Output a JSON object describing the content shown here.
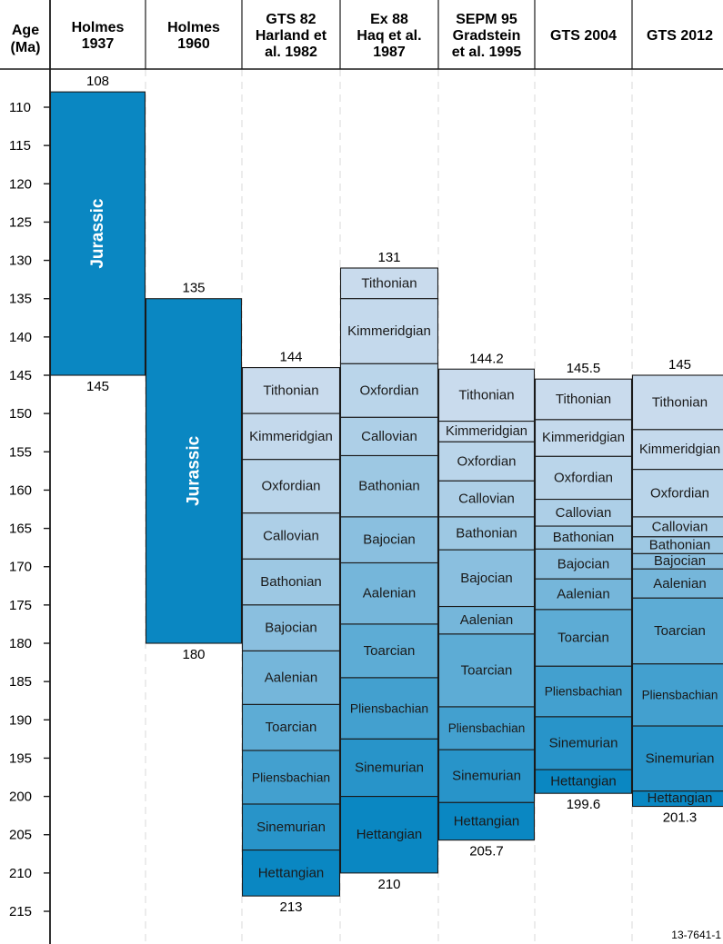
{
  "chart_data": {
    "type": "stacked-column-timescale",
    "axis": {
      "title_line1": "Age",
      "title_line2": "(Ma)",
      "ticks": [
        110,
        115,
        120,
        125,
        130,
        135,
        140,
        145,
        150,
        155,
        160,
        165,
        170,
        175,
        180,
        185,
        190,
        195,
        200,
        205,
        210,
        215
      ],
      "ylim": [
        101.5,
        220
      ],
      "direction": "down"
    },
    "colors": {
      "period": "#0a87c2",
      "stage_light": "#c9dbed",
      "stage_dark": "#0a87c2",
      "grid": "#d9d9d9",
      "border": "#1a1a1a"
    },
    "figure_id": "13-7641-1",
    "columns": [
      {
        "header": [
          "Holmes",
          "1937"
        ],
        "top_label": "108",
        "bottom_label": "145",
        "segments": [
          {
            "name": "Jurassic",
            "top": 108,
            "bottom": 145,
            "kind": "period"
          }
        ]
      },
      {
        "header": [
          "Holmes",
          "1960"
        ],
        "top_label": "135",
        "bottom_label": "180",
        "segments": [
          {
            "name": "Jurassic",
            "top": 135,
            "bottom": 180,
            "kind": "period"
          }
        ]
      },
      {
        "header": [
          "GTS 82",
          "Harland et",
          "al. 1982"
        ],
        "top_label": "144",
        "bottom_label": "213",
        "segments": [
          {
            "name": "Tithonian",
            "top": 144,
            "bottom": 150
          },
          {
            "name": "Kimmeridgian",
            "top": 150,
            "bottom": 156
          },
          {
            "name": "Oxfordian",
            "top": 156,
            "bottom": 163
          },
          {
            "name": "Callovian",
            "top": 163,
            "bottom": 169
          },
          {
            "name": "Bathonian",
            "top": 169,
            "bottom": 175
          },
          {
            "name": "Bajocian",
            "top": 175,
            "bottom": 181
          },
          {
            "name": "Aalenian",
            "top": 181,
            "bottom": 188
          },
          {
            "name": "Toarcian",
            "top": 188,
            "bottom": 194
          },
          {
            "name": "Pliensbachian",
            "top": 194,
            "bottom": 201
          },
          {
            "name": "Sinemurian",
            "top": 201,
            "bottom": 207
          },
          {
            "name": "Hettangian",
            "top": 207,
            "bottom": 213
          }
        ]
      },
      {
        "header": [
          "Ex 88",
          "Haq et al.",
          "1987"
        ],
        "top_label": "131",
        "bottom_label": "210",
        "segments": [
          {
            "name": "Tithonian",
            "top": 131,
            "bottom": 135
          },
          {
            "name": "Kimmeridgian",
            "top": 135,
            "bottom": 143.5
          },
          {
            "name": "Oxfordian",
            "top": 143.5,
            "bottom": 150.5
          },
          {
            "name": "Callovian",
            "top": 150.5,
            "bottom": 155.5
          },
          {
            "name": "Bathonian",
            "top": 155.5,
            "bottom": 163.5
          },
          {
            "name": "Bajocian",
            "top": 163.5,
            "bottom": 169.5
          },
          {
            "name": "Aalenian",
            "top": 169.5,
            "bottom": 177.5
          },
          {
            "name": "Toarcian",
            "top": 177.5,
            "bottom": 184.5
          },
          {
            "name": "Pliensbachian",
            "top": 184.5,
            "bottom": 192.5
          },
          {
            "name": "Sinemurian",
            "top": 192.5,
            "bottom": 200
          },
          {
            "name": "Hettangian",
            "top": 200,
            "bottom": 210
          }
        ]
      },
      {
        "header": [
          "SEPM 95",
          "Gradstein",
          "et al. 1995"
        ],
        "top_label": "144.2",
        "bottom_label": "205.7",
        "segments": [
          {
            "name": "Tithonian",
            "top": 144.2,
            "bottom": 151
          },
          {
            "name": "Kimmeridgian",
            "top": 151,
            "bottom": 153.7
          },
          {
            "name": "Oxfordian",
            "top": 153.7,
            "bottom": 158.8
          },
          {
            "name": "Callovian",
            "top": 158.8,
            "bottom": 163.5
          },
          {
            "name": "Bathonian",
            "top": 163.5,
            "bottom": 167.8
          },
          {
            "name": "Bajocian",
            "top": 167.8,
            "bottom": 175.2
          },
          {
            "name": "Aalenian",
            "top": 175.2,
            "bottom": 178.8
          },
          {
            "name": "Toarcian",
            "top": 178.8,
            "bottom": 188.3
          },
          {
            "name": "Pliensbachian",
            "top": 188.3,
            "bottom": 193.9
          },
          {
            "name": "Sinemurian",
            "top": 193.9,
            "bottom": 200.8
          },
          {
            "name": "Hettangian",
            "top": 200.8,
            "bottom": 205.7
          }
        ]
      },
      {
        "header": [
          "GTS 2004"
        ],
        "top_label": "145.5",
        "bottom_label": "199.6",
        "segments": [
          {
            "name": "Tithonian",
            "top": 145.5,
            "bottom": 150.8
          },
          {
            "name": "Kimmeridgian",
            "top": 150.8,
            "bottom": 155.6
          },
          {
            "name": "Oxfordian",
            "top": 155.6,
            "bottom": 161.2
          },
          {
            "name": "Callovian",
            "top": 161.2,
            "bottom": 164.7
          },
          {
            "name": "Bathonian",
            "top": 164.7,
            "bottom": 167.7
          },
          {
            "name": "Bajocian",
            "top": 167.7,
            "bottom": 171.6
          },
          {
            "name": "Aalenian",
            "top": 171.6,
            "bottom": 175.6
          },
          {
            "name": "Toarcian",
            "top": 175.6,
            "bottom": 183
          },
          {
            "name": "Pliensbachian",
            "top": 183,
            "bottom": 189.6
          },
          {
            "name": "Sinemurian",
            "top": 189.6,
            "bottom": 196.5
          },
          {
            "name": "Hettangian",
            "top": 196.5,
            "bottom": 199.6
          }
        ]
      },
      {
        "header": [
          "GTS 2012"
        ],
        "top_label": "145",
        "bottom_label": "201.3",
        "segments": [
          {
            "name": "Tithonian",
            "top": 145,
            "bottom": 152.1
          },
          {
            "name": "Kimmeridgian",
            "top": 152.1,
            "bottom": 157.3
          },
          {
            "name": "Oxfordian",
            "top": 157.3,
            "bottom": 163.5
          },
          {
            "name": "Callovian",
            "top": 163.5,
            "bottom": 166.1
          },
          {
            "name": "Bathonian",
            "top": 166.1,
            "bottom": 168.3
          },
          {
            "name": "Bajocian",
            "top": 168.3,
            "bottom": 170.3
          },
          {
            "name": "Aalenian",
            "top": 170.3,
            "bottom": 174.1
          },
          {
            "name": "Toarcian",
            "top": 174.1,
            "bottom": 182.7
          },
          {
            "name": "Pliensbachian",
            "top": 182.7,
            "bottom": 190.8
          },
          {
            "name": "Sinemurian",
            "top": 190.8,
            "bottom": 199.3
          },
          {
            "name": "Hettangian",
            "top": 199.3,
            "bottom": 201.3
          }
        ]
      }
    ]
  }
}
